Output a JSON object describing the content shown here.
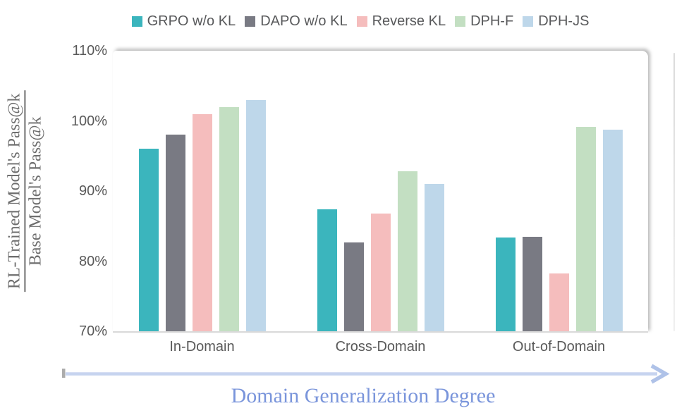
{
  "chart_data": {
    "type": "bar",
    "categories": [
      "In-Domain",
      "Cross-Domain",
      "Out-of-Domain"
    ],
    "series": [
      {
        "name": "GRPO w/o KL",
        "color": "#3BB5BD",
        "values": [
          96.0,
          87.4,
          83.4
        ]
      },
      {
        "name": "DAPO w/o KL",
        "color": "#797A83",
        "values": [
          98.0,
          82.7,
          83.5
        ]
      },
      {
        "name": "Reverse KL",
        "color": "#F5BDBD",
        "values": [
          101.0,
          86.8,
          78.2
        ]
      },
      {
        "name": "DPH-F",
        "color": "#C3DFC2",
        "values": [
          102.0,
          92.8,
          99.1
        ]
      },
      {
        "name": "DPH-JS",
        "color": "#BED7EA",
        "values": [
          103.0,
          91.0,
          98.7
        ]
      }
    ],
    "title": "",
    "ylabel_numerator": "RL-Trained Model's Pass@k",
    "ylabel_denominator": "Base Model's Pass@k",
    "xlabel": "Domain Generalization Degree",
    "ylim": [
      70,
      110
    ],
    "yticks": [
      110,
      100,
      90,
      80,
      70
    ],
    "ytick_suffix": "%",
    "grid": false,
    "legend_position": "top"
  },
  "colors": {
    "axis_text": "#595959",
    "legend_text": "#58595B",
    "y_axis_title_text": "#6E6E6E",
    "x_axis_title_text": "#7A95DB",
    "baseline": "#D9D9D9",
    "panel_background": "#FFFFFF",
    "arrow_line": "#C7D4EF",
    "arrow_head": "#AFC2E8",
    "arrow_start_tick": "#ACACAC"
  }
}
